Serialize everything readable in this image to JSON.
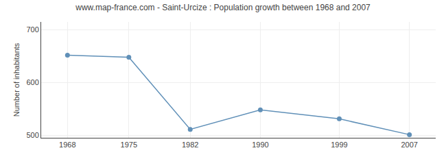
{
  "chart_data": {
    "type": "line",
    "title": "www.map-france.com - Saint-Urcize : Population growth between 1968 and 2007",
    "x": [
      1968,
      1975,
      1982,
      1990,
      1999,
      2007
    ],
    "values": [
      652,
      648,
      511,
      548,
      531,
      501
    ],
    "ylabel": "Number of inhabitants",
    "xlim": [
      1965,
      2010
    ],
    "xticks": [
      1968,
      1975,
      1982,
      1990,
      1999,
      2007
    ],
    "ylim": [
      495,
      715
    ],
    "yticks": [
      500,
      600,
      700
    ],
    "color": "#6090b8",
    "marker": "circle",
    "grid": true
  }
}
